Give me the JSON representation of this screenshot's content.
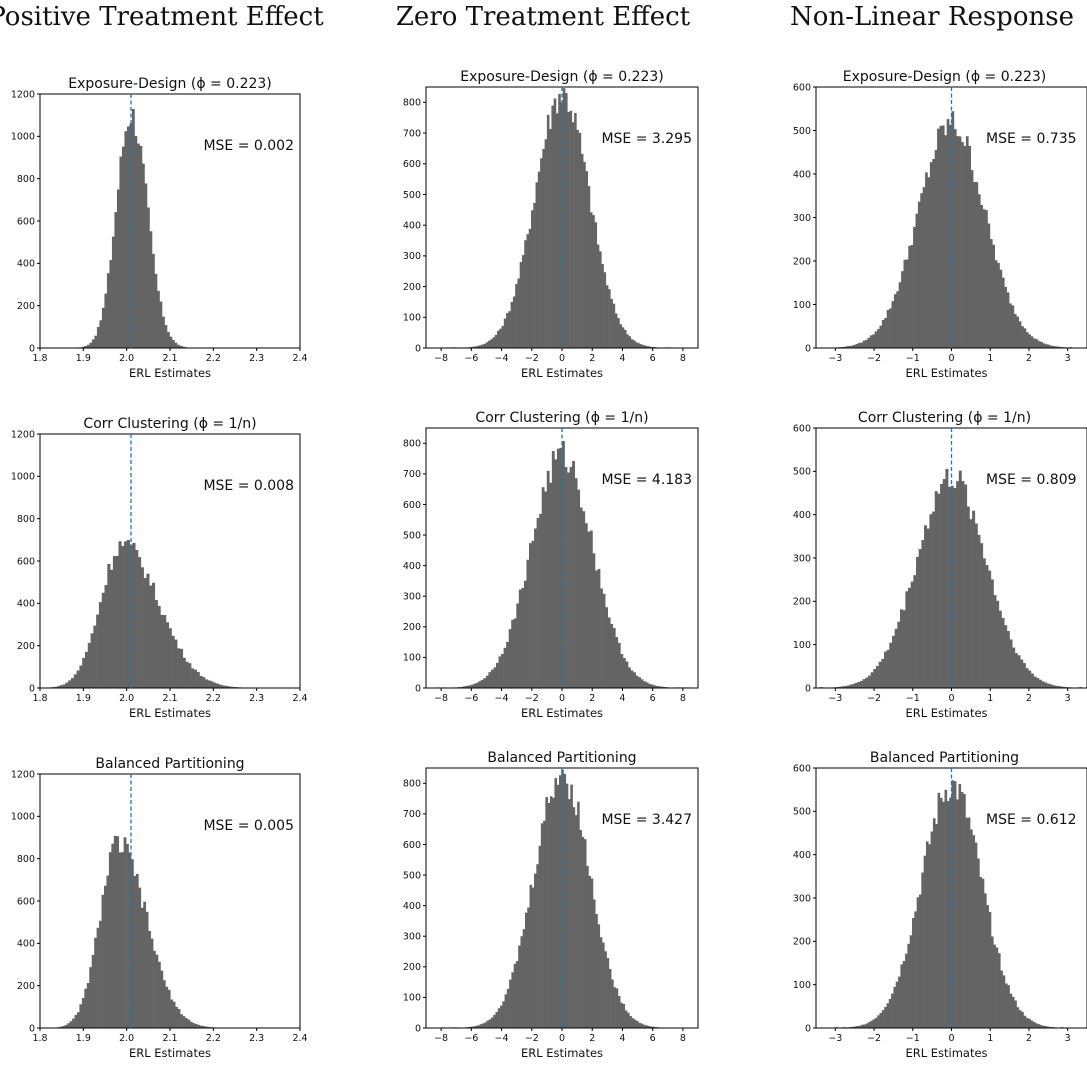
{
  "column_titles": [
    "Positive Treatment Effect",
    "Zero Treatment Effect",
    "Non-Linear Response"
  ],
  "chart_data": [
    {
      "type": "histogram",
      "column": 0,
      "row": 0,
      "title": "Exposure-Design (ϕ = 0.223)",
      "xlabel": "ERL Estimates",
      "annotation": "MSE = 0.002",
      "xlim": [
        1.8,
        2.4
      ],
      "ylim": [
        0,
        1200
      ],
      "xticks": [
        1.8,
        1.9,
        2.0,
        2.1,
        2.2,
        2.3,
        2.4
      ],
      "xticklabels": [
        "1.8",
        "1.9",
        "2.0",
        "2.1",
        "2.2",
        "2.3",
        "2.4"
      ],
      "yticks": [
        0,
        200,
        400,
        600,
        800,
        1000,
        1200
      ],
      "yticklabels": [
        "0",
        "200",
        "400",
        "600",
        "800",
        "1000",
        "1200"
      ],
      "vline": 2.01,
      "distribution": {
        "center": 2.01,
        "spread": 0.034,
        "peak": 1110,
        "skew": 0.2,
        "range": [
          1.81,
          2.33
        ]
      },
      "bins": 90
    },
    {
      "type": "histogram",
      "column": 1,
      "row": 0,
      "title": "Exposure-Design (ϕ = 0.223)",
      "xlabel": "ERL Estimates",
      "annotation": "MSE = 3.295",
      "xlim": [
        -9,
        9
      ],
      "ylim": [
        0,
        850
      ],
      "xticks": [
        -8,
        -6,
        -4,
        -2,
        0,
        2,
        4,
        6,
        8
      ],
      "xticklabels": [
        "−8",
        "−6",
        "−4",
        "−2",
        "0",
        "2",
        "4",
        "6",
        "8"
      ],
      "yticks": [
        0,
        100,
        200,
        300,
        400,
        500,
        600,
        700,
        800
      ],
      "yticklabels": [
        "0",
        "100",
        "200",
        "300",
        "400",
        "500",
        "600",
        "700",
        "800"
      ],
      "vline": 0,
      "distribution": {
        "center": 0,
        "spread": 1.8,
        "peak": 830,
        "skew": 0,
        "range": [
          -7.6,
          7.4
        ]
      },
      "bins": 100
    },
    {
      "type": "histogram",
      "column": 2,
      "row": 0,
      "title": "Exposure-Design (ϕ = 0.223)",
      "xlabel": "ERL Estimates",
      "annotation": "MSE = 0.735",
      "xlim": [
        -3.5,
        3.5
      ],
      "ylim": [
        0,
        600
      ],
      "xticks": [
        -3,
        -2,
        -1,
        0,
        1,
        2,
        3
      ],
      "xticklabels": [
        "−3",
        "−2",
        "−1",
        "0",
        "1",
        "2",
        "3"
      ],
      "yticks": [
        0,
        100,
        200,
        300,
        400,
        500,
        600
      ],
      "yticklabels": [
        "0",
        "100",
        "200",
        "300",
        "400",
        "500",
        "600"
      ],
      "vline": 0,
      "distribution": {
        "center": 0,
        "spread": 0.86,
        "peak": 515,
        "skew": 0,
        "range": [
          -3.1,
          3.1
        ]
      },
      "bins": 100
    },
    {
      "type": "histogram",
      "column": 0,
      "row": 1,
      "title": "Corr Clustering (ϕ = 1/n)",
      "xlabel": "ERL Estimates",
      "annotation": "MSE = 0.008",
      "xlim": [
        1.8,
        2.4
      ],
      "ylim": [
        0,
        1200
      ],
      "xticks": [
        1.8,
        1.9,
        2.0,
        2.1,
        2.2,
        2.3,
        2.4
      ],
      "xticklabels": [
        "1.8",
        "1.9",
        "2.0",
        "2.1",
        "2.2",
        "2.3",
        "2.4"
      ],
      "yticks": [
        0,
        200,
        400,
        600,
        800,
        1000,
        1200
      ],
      "yticklabels": [
        "0",
        "200",
        "400",
        "600",
        "800",
        "1000",
        "1200"
      ],
      "vline": 2.01,
      "distribution": {
        "center": 1.99,
        "spread": 0.05,
        "peak": 680,
        "skew": 1.3,
        "range": [
          1.82,
          2.4
        ]
      },
      "bins": 90
    },
    {
      "type": "histogram",
      "column": 1,
      "row": 1,
      "title": "Corr Clustering (ϕ = 1/n)",
      "xlabel": "ERL Estimates",
      "annotation": "MSE = 4.183",
      "xlim": [
        -9,
        9
      ],
      "ylim": [
        0,
        850
      ],
      "xticks": [
        -8,
        -6,
        -4,
        -2,
        0,
        2,
        4,
        6,
        8
      ],
      "xticklabels": [
        "−8",
        "−6",
        "−4",
        "−2",
        "0",
        "2",
        "4",
        "6",
        "8"
      ],
      "yticks": [
        0,
        100,
        200,
        300,
        400,
        500,
        600,
        700,
        800
      ],
      "yticklabels": [
        "0",
        "100",
        "200",
        "300",
        "400",
        "500",
        "600",
        "700",
        "800"
      ],
      "vline": 0,
      "distribution": {
        "center": 0,
        "spread": 2.05,
        "peak": 760,
        "skew": 0,
        "range": [
          -8.4,
          8.4
        ]
      },
      "bins": 100
    },
    {
      "type": "histogram",
      "column": 2,
      "row": 1,
      "title": "Corr Clustering (ϕ = 1/n)",
      "xlabel": "ERL Estimates",
      "annotation": "MSE = 0.809",
      "xlim": [
        -3.5,
        3.5
      ],
      "ylim": [
        0,
        600
      ],
      "xticks": [
        -3,
        -2,
        -1,
        0,
        1,
        2,
        3
      ],
      "xticklabels": [
        "−3",
        "−2",
        "−1",
        "0",
        "1",
        "2",
        "3"
      ],
      "yticks": [
        0,
        100,
        200,
        300,
        400,
        500,
        600
      ],
      "yticklabels": [
        "0",
        "100",
        "200",
        "300",
        "400",
        "500",
        "600"
      ],
      "vline": 0,
      "distribution": {
        "center": 0,
        "spread": 0.9,
        "peak": 485,
        "skew": 0,
        "range": [
          -3.4,
          3.5
        ]
      },
      "bins": 100
    },
    {
      "type": "histogram",
      "column": 0,
      "row": 2,
      "title": "Balanced Partitioning",
      "xlabel": "ERL Estimates",
      "annotation": "MSE = 0.005",
      "xlim": [
        1.8,
        2.4
      ],
      "ylim": [
        0,
        1200
      ],
      "xticks": [
        1.8,
        1.9,
        2.0,
        2.1,
        2.2,
        2.3,
        2.4
      ],
      "xticklabels": [
        "1.8",
        "1.9",
        "2.0",
        "2.1",
        "2.2",
        "2.3",
        "2.4"
      ],
      "yticks": [
        0,
        200,
        400,
        600,
        800,
        1000,
        1200
      ],
      "yticklabels": [
        "0",
        "200",
        "400",
        "600",
        "800",
        "1000",
        "1200"
      ],
      "vline": 2.01,
      "distribution": {
        "center": 1.98,
        "spread": 0.042,
        "peak": 870,
        "skew": 1.1,
        "range": [
          1.84,
          2.35
        ]
      },
      "bins": 90
    },
    {
      "type": "histogram",
      "column": 1,
      "row": 2,
      "title": "Balanced Partitioning",
      "xlabel": "ERL Estimates",
      "annotation": "MSE = 3.427",
      "xlim": [
        -9,
        9
      ],
      "ylim": [
        0,
        850
      ],
      "xticks": [
        -8,
        -6,
        -4,
        -2,
        0,
        2,
        4,
        6,
        8
      ],
      "xticklabels": [
        "−8",
        "−6",
        "−4",
        "−2",
        "0",
        "2",
        "4",
        "6",
        "8"
      ],
      "yticks": [
        0,
        100,
        200,
        300,
        400,
        500,
        600,
        700,
        800
      ],
      "yticklabels": [
        "0",
        "100",
        "200",
        "300",
        "400",
        "500",
        "600",
        "700",
        "800"
      ],
      "vline": 0,
      "distribution": {
        "center": 0,
        "spread": 1.85,
        "peak": 830,
        "skew": 0,
        "range": [
          -8,
          7
        ]
      },
      "bins": 100
    },
    {
      "type": "histogram",
      "column": 2,
      "row": 2,
      "title": "Balanced Partitioning",
      "xlabel": "ERL Estimates",
      "annotation": "MSE = 0.612",
      "xlim": [
        -3.5,
        3.5
      ],
      "ylim": [
        0,
        600
      ],
      "xticks": [
        -3,
        -2,
        -1,
        0,
        1,
        2,
        3
      ],
      "xticklabels": [
        "−3",
        "−2",
        "−1",
        "0",
        "1",
        "2",
        "3"
      ],
      "yticks": [
        0,
        100,
        200,
        300,
        400,
        500,
        600
      ],
      "yticklabels": [
        "0",
        "100",
        "200",
        "300",
        "400",
        "500",
        "600"
      ],
      "vline": 0,
      "distribution": {
        "center": 0,
        "spread": 0.78,
        "peak": 560,
        "skew": 0,
        "range": [
          -3,
          3
        ]
      },
      "bins": 100
    }
  ],
  "colors": {
    "bar": "#646464",
    "vline": "#1f77b4",
    "axis": "#000000"
  }
}
